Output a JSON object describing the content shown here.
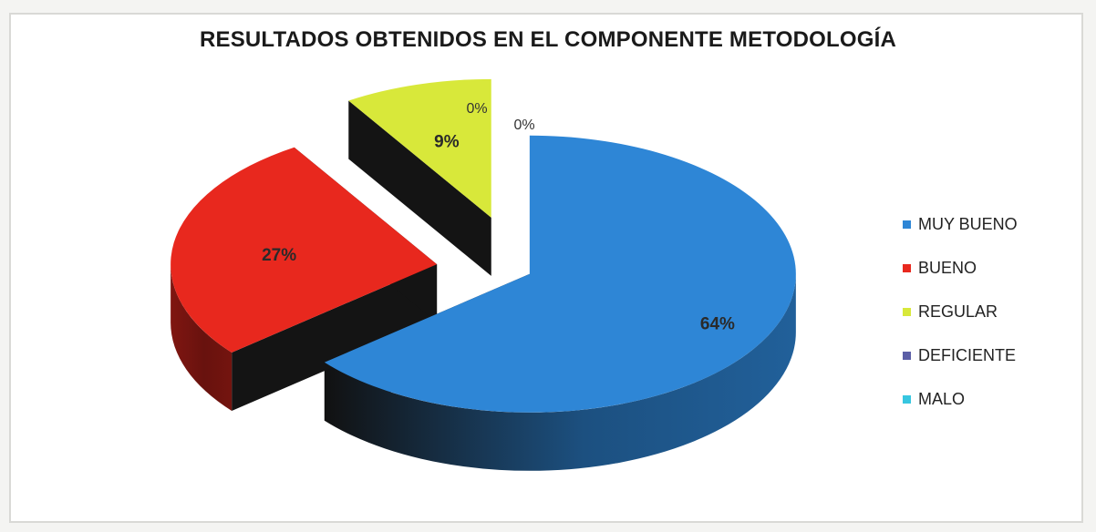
{
  "chart_data": {
    "type": "pie",
    "title": "RESULTADOS OBTENIDOS EN EL COMPONENTE METODOLOGÍA",
    "categories": [
      "MUY BUENO",
      "BUENO",
      "REGULAR",
      "DEFICIENTE",
      "MALO"
    ],
    "values": [
      64,
      27,
      9,
      0,
      0
    ],
    "labels": [
      "64%",
      "27%",
      "9%",
      "0%",
      "0%"
    ],
    "colors": [
      "#2e86d6",
      "#e8281e",
      "#d8e83a",
      "#5b5ea6",
      "#37c6e0"
    ],
    "style": "exploded-3d",
    "legend": "right"
  }
}
